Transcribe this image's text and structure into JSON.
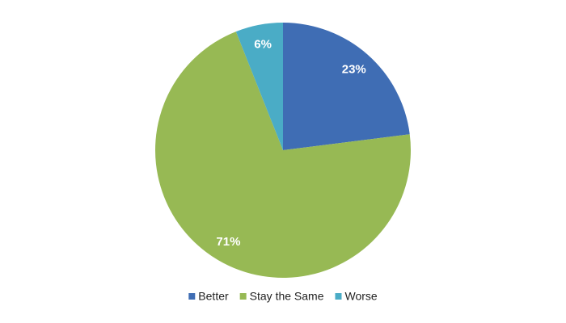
{
  "chart_data": {
    "type": "pie",
    "categories": [
      "Better",
      "Stay the Same",
      "Worse"
    ],
    "values": [
      23,
      71,
      6
    ],
    "value_labels": [
      "23%",
      "71%",
      "6%"
    ],
    "colors": [
      "#3f6db4",
      "#97b954",
      "#4aacc6"
    ],
    "legend": "bottom"
  }
}
